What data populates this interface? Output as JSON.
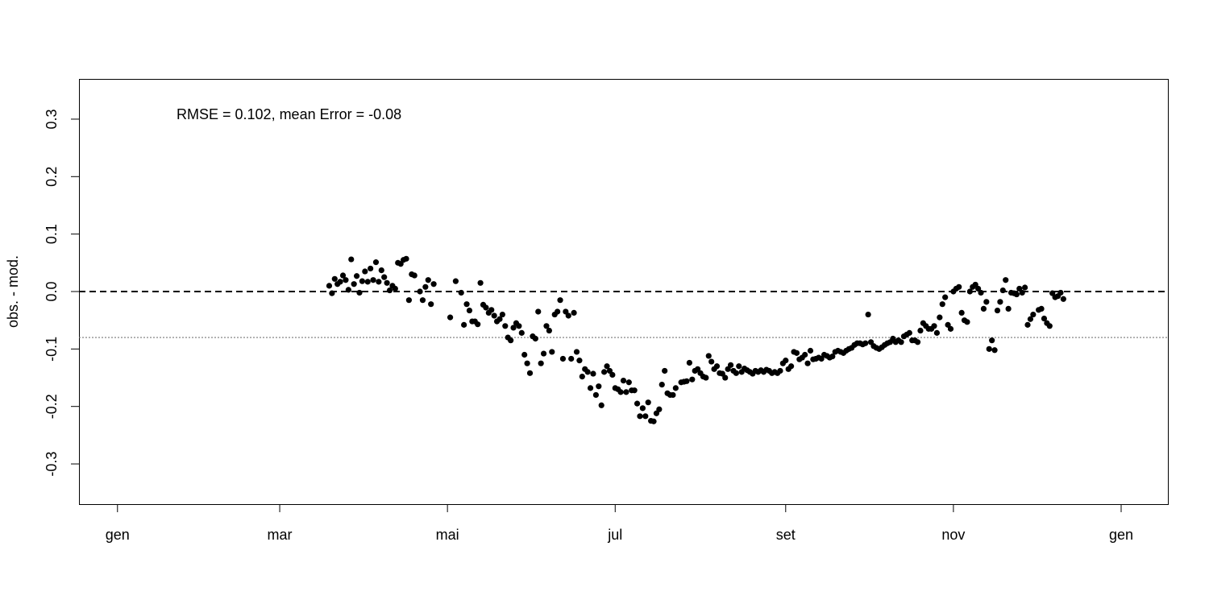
{
  "chart_data": {
    "type": "scatter",
    "title": "",
    "xlabel": "",
    "ylabel": "obs. - mod.",
    "annotation": "RMSE = 0.102, mean Error = -0.08",
    "x_ticks": [
      "gen",
      "mar",
      "mai",
      "jul",
      "set",
      "nov",
      "gen"
    ],
    "y_ticks": [
      "-0.3",
      "-0.2",
      "-0.1",
      "0.0",
      "0.1",
      "0.2",
      "0.3"
    ],
    "xlim": [
      "2012-12-18",
      "2014-01-18"
    ],
    "ylim": [
      -0.37,
      0.37
    ],
    "reference_lines": [
      {
        "y": 0.0,
        "style": "dashed",
        "color": "#000000"
      },
      {
        "y": -0.08,
        "style": "dotted",
        "color": "#777777"
      }
    ],
    "grid": false,
    "legend": "none",
    "marker_color": "#000000",
    "series": [
      {
        "points": [
          [
            "2013-03-19",
            0.01
          ],
          [
            "2013-03-20",
            -0.003
          ],
          [
            "2013-03-21",
            0.022
          ],
          [
            "2013-03-22",
            0.013
          ],
          [
            "2013-03-23",
            0.017
          ],
          [
            "2013-03-24",
            0.028
          ],
          [
            "2013-03-25",
            0.02
          ],
          [
            "2013-03-26",
            0.003
          ],
          [
            "2013-03-27",
            0.056
          ],
          [
            "2013-03-28",
            0.013
          ],
          [
            "2013-03-29",
            0.027
          ],
          [
            "2013-03-30",
            -0.002
          ],
          [
            "2013-03-31",
            0.018
          ],
          [
            "2013-04-01",
            0.035
          ],
          [
            "2013-04-02",
            0.017
          ],
          [
            "2013-04-03",
            0.04
          ],
          [
            "2013-04-04",
            0.02
          ],
          [
            "2013-04-05",
            0.051
          ],
          [
            "2013-04-06",
            0.017
          ],
          [
            "2013-04-07",
            0.037
          ],
          [
            "2013-04-08",
            0.025
          ],
          [
            "2013-04-09",
            0.015
          ],
          [
            "2013-04-10",
            0.002
          ],
          [
            "2013-04-11",
            0.01
          ],
          [
            "2013-04-12",
            0.005
          ],
          [
            "2013-04-13",
            0.05
          ],
          [
            "2013-04-14",
            0.048
          ],
          [
            "2013-04-15",
            0.055
          ],
          [
            "2013-04-16",
            0.057
          ],
          [
            "2013-04-17",
            -0.015
          ],
          [
            "2013-04-18",
            0.03
          ],
          [
            "2013-04-19",
            0.028
          ],
          [
            "2013-04-21",
            0.0
          ],
          [
            "2013-04-22",
            -0.015
          ],
          [
            "2013-04-23",
            0.008
          ],
          [
            "2013-04-24",
            0.02
          ],
          [
            "2013-04-25",
            -0.022
          ],
          [
            "2013-04-26",
            0.013
          ],
          [
            "2013-05-02",
            -0.045
          ],
          [
            "2013-05-04",
            0.018
          ],
          [
            "2013-05-06",
            -0.002
          ],
          [
            "2013-05-07",
            -0.058
          ],
          [
            "2013-05-08",
            -0.022
          ],
          [
            "2013-05-09",
            -0.033
          ],
          [
            "2013-05-10",
            -0.052
          ],
          [
            "2013-05-11",
            -0.052
          ],
          [
            "2013-05-12",
            -0.057
          ],
          [
            "2013-05-13",
            0.015
          ],
          [
            "2013-05-14",
            -0.023
          ],
          [
            "2013-05-15",
            -0.028
          ],
          [
            "2013-05-16",
            -0.037
          ],
          [
            "2013-05-17",
            -0.032
          ],
          [
            "2013-05-18",
            -0.042
          ],
          [
            "2013-05-19",
            -0.052
          ],
          [
            "2013-05-20",
            -0.048
          ],
          [
            "2013-05-21",
            -0.04
          ],
          [
            "2013-05-22",
            -0.06
          ],
          [
            "2013-05-23",
            -0.08
          ],
          [
            "2013-05-24",
            -0.085
          ],
          [
            "2013-05-25",
            -0.063
          ],
          [
            "2013-05-26",
            -0.055
          ],
          [
            "2013-05-27",
            -0.06
          ],
          [
            "2013-05-28",
            -0.072
          ],
          [
            "2013-05-29",
            -0.11
          ],
          [
            "2013-05-30",
            -0.125
          ],
          [
            "2013-05-31",
            -0.142
          ],
          [
            "2013-06-01",
            -0.078
          ],
          [
            "2013-06-02",
            -0.082
          ],
          [
            "2013-06-03",
            -0.035
          ],
          [
            "2013-06-04",
            -0.125
          ],
          [
            "2013-06-05",
            -0.108
          ],
          [
            "2013-06-06",
            -0.06
          ],
          [
            "2013-06-07",
            -0.068
          ],
          [
            "2013-06-08",
            -0.105
          ],
          [
            "2013-06-09",
            -0.04
          ],
          [
            "2013-06-10",
            -0.035
          ],
          [
            "2013-06-11",
            -0.015
          ],
          [
            "2013-06-12",
            -0.117
          ],
          [
            "2013-06-13",
            -0.035
          ],
          [
            "2013-06-14",
            -0.042
          ],
          [
            "2013-06-15",
            -0.117
          ],
          [
            "2013-06-16",
            -0.037
          ],
          [
            "2013-06-17",
            -0.105
          ],
          [
            "2013-06-18",
            -0.12
          ],
          [
            "2013-06-19",
            -0.148
          ],
          [
            "2013-06-20",
            -0.135
          ],
          [
            "2013-06-21",
            -0.14
          ],
          [
            "2013-06-22",
            -0.168
          ],
          [
            "2013-06-23",
            -0.143
          ],
          [
            "2013-06-24",
            -0.18
          ],
          [
            "2013-06-25",
            -0.165
          ],
          [
            "2013-06-26",
            -0.198
          ],
          [
            "2013-06-27",
            -0.14
          ],
          [
            "2013-06-28",
            -0.13
          ],
          [
            "2013-06-29",
            -0.138
          ],
          [
            "2013-06-30",
            -0.145
          ],
          [
            "2013-07-01",
            -0.168
          ],
          [
            "2013-07-02",
            -0.17
          ],
          [
            "2013-07-03",
            -0.175
          ],
          [
            "2013-07-04",
            -0.155
          ],
          [
            "2013-07-05",
            -0.175
          ],
          [
            "2013-07-06",
            -0.158
          ],
          [
            "2013-07-07",
            -0.172
          ],
          [
            "2013-07-08",
            -0.172
          ],
          [
            "2013-07-09",
            -0.195
          ],
          [
            "2013-07-10",
            -0.217
          ],
          [
            "2013-07-11",
            -0.203
          ],
          [
            "2013-07-12",
            -0.217
          ],
          [
            "2013-07-13",
            -0.193
          ],
          [
            "2013-07-14",
            -0.225
          ],
          [
            "2013-07-15",
            -0.226
          ],
          [
            "2013-07-16",
            -0.212
          ],
          [
            "2013-07-17",
            -0.205
          ],
          [
            "2013-07-18",
            -0.162
          ],
          [
            "2013-07-19",
            -0.138
          ],
          [
            "2013-07-20",
            -0.177
          ],
          [
            "2013-07-21",
            -0.18
          ],
          [
            "2013-07-22",
            -0.18
          ],
          [
            "2013-07-23",
            -0.168
          ],
          [
            "2013-07-25",
            -0.158
          ],
          [
            "2013-07-26",
            -0.157
          ],
          [
            "2013-07-27",
            -0.156
          ],
          [
            "2013-07-28",
            -0.124
          ],
          [
            "2013-07-29",
            -0.153
          ],
          [
            "2013-07-30",
            -0.138
          ],
          [
            "2013-07-31",
            -0.135
          ],
          [
            "2013-08-01",
            -0.142
          ],
          [
            "2013-08-02",
            -0.148
          ],
          [
            "2013-08-03",
            -0.15
          ],
          [
            "2013-08-04",
            -0.112
          ],
          [
            "2013-08-05",
            -0.122
          ],
          [
            "2013-08-06",
            -0.135
          ],
          [
            "2013-08-07",
            -0.13
          ],
          [
            "2013-08-08",
            -0.142
          ],
          [
            "2013-08-09",
            -0.143
          ],
          [
            "2013-08-10",
            -0.15
          ],
          [
            "2013-08-11",
            -0.135
          ],
          [
            "2013-08-12",
            -0.128
          ],
          [
            "2013-08-13",
            -0.138
          ],
          [
            "2013-08-14",
            -0.142
          ],
          [
            "2013-08-15",
            -0.13
          ],
          [
            "2013-08-16",
            -0.14
          ],
          [
            "2013-08-17",
            -0.134
          ],
          [
            "2013-08-18",
            -0.137
          ],
          [
            "2013-08-19",
            -0.14
          ],
          [
            "2013-08-20",
            -0.143
          ],
          [
            "2013-08-21",
            -0.138
          ],
          [
            "2013-08-22",
            -0.14
          ],
          [
            "2013-08-23",
            -0.137
          ],
          [
            "2013-08-24",
            -0.14
          ],
          [
            "2013-08-25",
            -0.136
          ],
          [
            "2013-08-26",
            -0.138
          ],
          [
            "2013-08-27",
            -0.142
          ],
          [
            "2013-08-28",
            -0.14
          ],
          [
            "2013-08-29",
            -0.142
          ],
          [
            "2013-08-30",
            -0.138
          ],
          [
            "2013-08-31",
            -0.125
          ],
          [
            "2013-09-01",
            -0.12
          ],
          [
            "2013-09-02",
            -0.135
          ],
          [
            "2013-09-03",
            -0.13
          ],
          [
            "2013-09-04",
            -0.105
          ],
          [
            "2013-09-05",
            -0.107
          ],
          [
            "2013-09-06",
            -0.118
          ],
          [
            "2013-09-07",
            -0.115
          ],
          [
            "2013-09-08",
            -0.11
          ],
          [
            "2013-09-09",
            -0.125
          ],
          [
            "2013-09-10",
            -0.103
          ],
          [
            "2013-09-11",
            -0.118
          ],
          [
            "2013-09-12",
            -0.117
          ],
          [
            "2013-09-13",
            -0.115
          ],
          [
            "2013-09-14",
            -0.117
          ],
          [
            "2013-09-15",
            -0.11
          ],
          [
            "2013-09-16",
            -0.112
          ],
          [
            "2013-09-17",
            -0.115
          ],
          [
            "2013-09-18",
            -0.113
          ],
          [
            "2013-09-19",
            -0.105
          ],
          [
            "2013-09-20",
            -0.103
          ],
          [
            "2013-09-21",
            -0.105
          ],
          [
            "2013-09-22",
            -0.107
          ],
          [
            "2013-09-23",
            -0.103
          ],
          [
            "2013-09-24",
            -0.1
          ],
          [
            "2013-09-25",
            -0.098
          ],
          [
            "2013-09-26",
            -0.093
          ],
          [
            "2013-09-27",
            -0.09
          ],
          [
            "2013-09-28",
            -0.09
          ],
          [
            "2013-09-29",
            -0.092
          ],
          [
            "2013-09-30",
            -0.09
          ],
          [
            "2013-10-01",
            -0.04
          ],
          [
            "2013-10-02",
            -0.088
          ],
          [
            "2013-10-03",
            -0.095
          ],
          [
            "2013-10-04",
            -0.098
          ],
          [
            "2013-10-05",
            -0.1
          ],
          [
            "2013-10-06",
            -0.097
          ],
          [
            "2013-10-07",
            -0.093
          ],
          [
            "2013-10-08",
            -0.09
          ],
          [
            "2013-10-09",
            -0.088
          ],
          [
            "2013-10-10",
            -0.082
          ],
          [
            "2013-10-11",
            -0.088
          ],
          [
            "2013-10-12",
            -0.085
          ],
          [
            "2013-10-13",
            -0.088
          ],
          [
            "2013-10-14",
            -0.078
          ],
          [
            "2013-10-15",
            -0.075
          ],
          [
            "2013-10-16",
            -0.072
          ],
          [
            "2013-10-17",
            -0.085
          ],
          [
            "2013-10-18",
            -0.085
          ],
          [
            "2013-10-19",
            -0.088
          ],
          [
            "2013-10-20",
            -0.068
          ],
          [
            "2013-10-21",
            -0.055
          ],
          [
            "2013-10-22",
            -0.06
          ],
          [
            "2013-10-23",
            -0.065
          ],
          [
            "2013-10-24",
            -0.065
          ],
          [
            "2013-10-25",
            -0.06
          ],
          [
            "2013-10-26",
            -0.072
          ],
          [
            "2013-10-27",
            -0.045
          ],
          [
            "2013-10-28",
            -0.022
          ],
          [
            "2013-10-29",
            -0.01
          ],
          [
            "2013-10-30",
            -0.058
          ],
          [
            "2013-10-31",
            -0.065
          ],
          [
            "2013-11-01",
            0.0
          ],
          [
            "2013-11-02",
            0.005
          ],
          [
            "2013-11-03",
            0.008
          ],
          [
            "2013-11-04",
            -0.037
          ],
          [
            "2013-11-05",
            -0.05
          ],
          [
            "2013-11-06",
            -0.053
          ],
          [
            "2013-11-07",
            0.0
          ],
          [
            "2013-11-08",
            0.008
          ],
          [
            "2013-11-09",
            0.012
          ],
          [
            "2013-11-10",
            0.005
          ],
          [
            "2013-11-11",
            -0.002
          ],
          [
            "2013-11-12",
            -0.03
          ],
          [
            "2013-11-13",
            -0.018
          ],
          [
            "2013-11-14",
            -0.1
          ],
          [
            "2013-11-15",
            -0.085
          ],
          [
            "2013-11-16",
            -0.102
          ],
          [
            "2013-11-17",
            -0.033
          ],
          [
            "2013-11-18",
            -0.018
          ],
          [
            "2013-11-19",
            0.002
          ],
          [
            "2013-11-20",
            0.02
          ],
          [
            "2013-11-21",
            -0.03
          ],
          [
            "2013-11-22",
            -0.002
          ],
          [
            "2013-11-23",
            -0.003
          ],
          [
            "2013-11-24",
            -0.005
          ],
          [
            "2013-11-25",
            0.005
          ],
          [
            "2013-11-26",
            -0.002
          ],
          [
            "2013-11-27",
            0.007
          ],
          [
            "2013-11-28",
            -0.058
          ],
          [
            "2013-11-29",
            -0.048
          ],
          [
            "2013-11-30",
            -0.04
          ],
          [
            "2013-12-02",
            -0.032
          ],
          [
            "2013-12-03",
            -0.03
          ],
          [
            "2013-12-04",
            -0.047
          ],
          [
            "2013-12-05",
            -0.055
          ],
          [
            "2013-12-06",
            -0.06
          ],
          [
            "2013-12-07",
            -0.003
          ],
          [
            "2013-12-08",
            -0.01
          ],
          [
            "2013-12-09",
            -0.008
          ],
          [
            "2013-12-10",
            -0.002
          ],
          [
            "2013-12-11",
            -0.013
          ]
        ]
      }
    ]
  }
}
